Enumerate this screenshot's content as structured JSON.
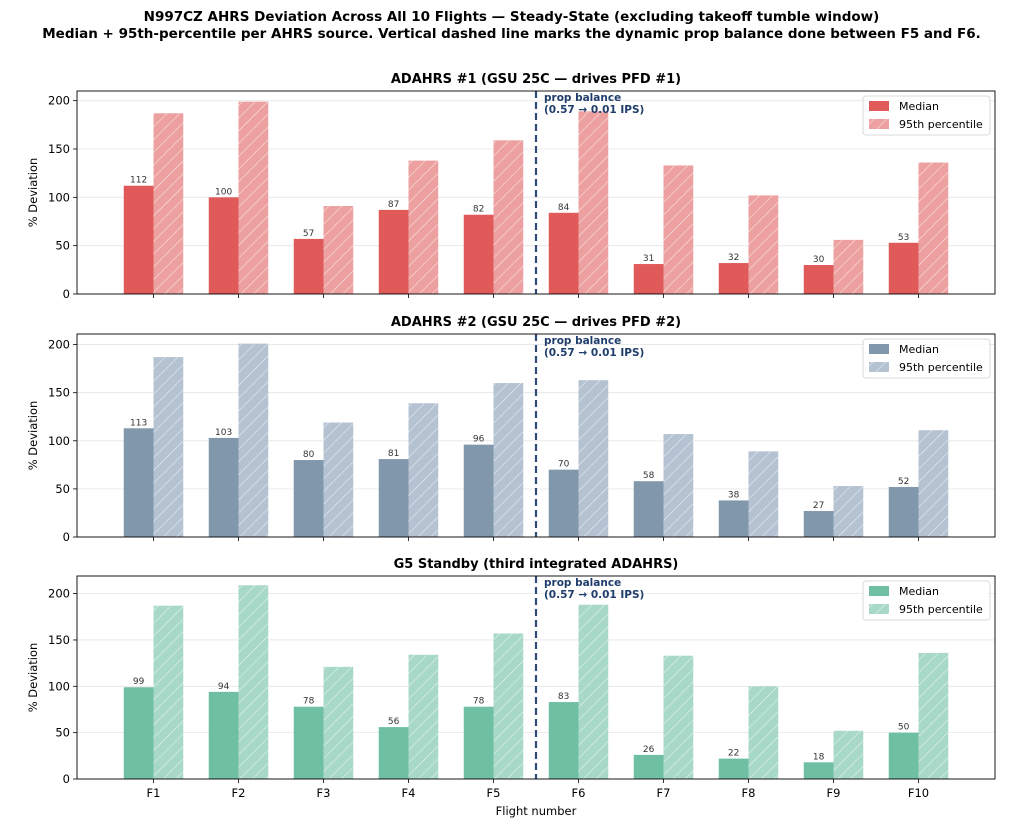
{
  "figure": {
    "title_line1": "N997CZ AHRS Deviation Across All 10 Flights — Steady-State (excluding takeoff tumble window)",
    "title_line2": "Median + 95th-percentile per AHRS source. Vertical dashed line marks the dynamic prop balance done between F5 and F6.",
    "xlabel": "Flight number",
    "ylabel": "% Deviation"
  },
  "chart_data": [
    {
      "type": "bar",
      "title": "ADAHRS #1 (GSU 25C — drives PFD #1)",
      "categories": [
        "F1",
        "F2",
        "F3",
        "F4",
        "F5",
        "F6",
        "F7",
        "F8",
        "F9",
        "F10"
      ],
      "series": [
        {
          "name": "Median",
          "values": [
            112,
            100,
            57,
            87,
            82,
            84,
            31,
            32,
            30,
            53
          ],
          "color": "#e05a5a",
          "labeled": true
        },
        {
          "name": "95th percentile",
          "values": [
            187,
            199,
            91,
            138,
            159,
            189,
            133,
            102,
            56,
            136
          ],
          "color": "#eda0a0",
          "hatched": true
        }
      ],
      "ylim": [
        0,
        210
      ],
      "yticks": [
        0,
        50,
        100,
        150,
        200
      ],
      "annotation": {
        "line1": "prop balance",
        "line2": "(0.57 → 0.01 IPS)",
        "after_category": "F5"
      },
      "legend": "top-right",
      "grid": "y"
    },
    {
      "type": "bar",
      "title": "ADAHRS #2 (GSU 25C — drives PFD #2)",
      "categories": [
        "F1",
        "F2",
        "F3",
        "F4",
        "F5",
        "F6",
        "F7",
        "F8",
        "F9",
        "F10"
      ],
      "series": [
        {
          "name": "Median",
          "values": [
            113,
            103,
            80,
            81,
            96,
            70,
            58,
            38,
            27,
            52
          ],
          "color": "#8197ab",
          "labeled": true
        },
        {
          "name": "95th percentile",
          "values": [
            187,
            201,
            119,
            139,
            160,
            163,
            107,
            89,
            53,
            111
          ],
          "color": "#b4c2d1",
          "hatched": true
        }
      ],
      "ylim": [
        0,
        211
      ],
      "yticks": [
        0,
        50,
        100,
        150,
        200
      ],
      "annotation": {
        "line1": "prop balance",
        "line2": "(0.57 → 0.01 IPS)",
        "after_category": "F5"
      },
      "legend": "top-right",
      "grid": "y"
    },
    {
      "type": "bar",
      "title": "G5 Standby (third integrated ADAHRS)",
      "categories": [
        "F1",
        "F2",
        "F3",
        "F4",
        "F5",
        "F6",
        "F7",
        "F8",
        "F9",
        "F10"
      ],
      "series": [
        {
          "name": "Median",
          "values": [
            99,
            94,
            78,
            56,
            78,
            83,
            26,
            22,
            18,
            50
          ],
          "color": "#6fbfa3",
          "labeled": true
        },
        {
          "name": "95th percentile",
          "values": [
            187,
            209,
            121,
            134,
            157,
            188,
            133,
            100,
            52,
            136
          ],
          "color": "#a8d8c7",
          "hatched": true
        }
      ],
      "ylim": [
        0,
        219
      ],
      "yticks": [
        0,
        50,
        100,
        150,
        200
      ],
      "annotation": {
        "line1": "prop balance",
        "line2": "(0.57 → 0.01 IPS)",
        "after_category": "F5"
      },
      "legend": "top-right",
      "grid": "y"
    }
  ]
}
